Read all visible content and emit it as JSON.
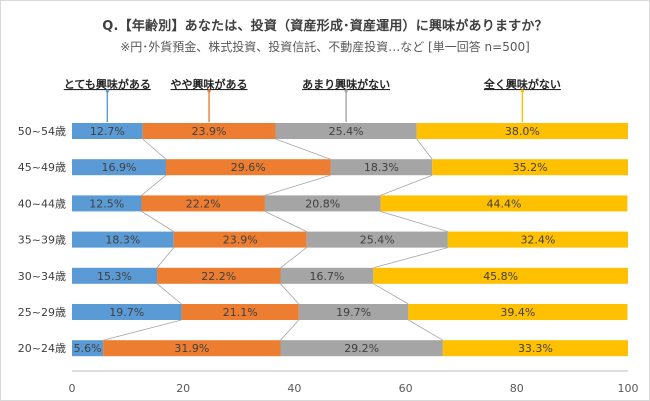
{
  "chart_data": {
    "type": "bar",
    "stacked": "percent",
    "orientation": "horizontal",
    "title": "Q.【年齢別】あなたは、投資（資産形成･資産運用）に興味がありますか？",
    "subtitle": "※円･外貨預金、株式投資、投資信託、不動産投資…など [単一回答 n=500]",
    "categories": [
      "50~54歳",
      "45~49歳",
      "40~44歳",
      "35~39歳",
      "30~34歳",
      "25~29歳",
      "20~24歳"
    ],
    "series": [
      {
        "name": "とても興味がある",
        "color": "#5b9bd5",
        "values": [
          12.7,
          16.9,
          12.5,
          18.3,
          15.3,
          19.7,
          5.6
        ]
      },
      {
        "name": "やや興味がある",
        "color": "#ed7d31",
        "values": [
          23.9,
          29.6,
          22.2,
          23.9,
          22.2,
          21.1,
          31.9
        ]
      },
      {
        "name": "あまり興味がない",
        "color": "#a5a5a5",
        "values": [
          25.4,
          18.3,
          20.8,
          25.4,
          16.7,
          19.7,
          29.2
        ]
      },
      {
        "name": "全く興味がない",
        "color": "#ffc000",
        "values": [
          38.0,
          35.2,
          44.4,
          32.4,
          45.8,
          39.4,
          33.3
        ]
      }
    ],
    "xlim": [
      0,
      100
    ],
    "xticks": [
      0,
      20,
      40,
      60,
      80,
      100
    ],
    "value_format": "percent_1dp",
    "grid": false,
    "series_lines": true,
    "legend": "top"
  }
}
